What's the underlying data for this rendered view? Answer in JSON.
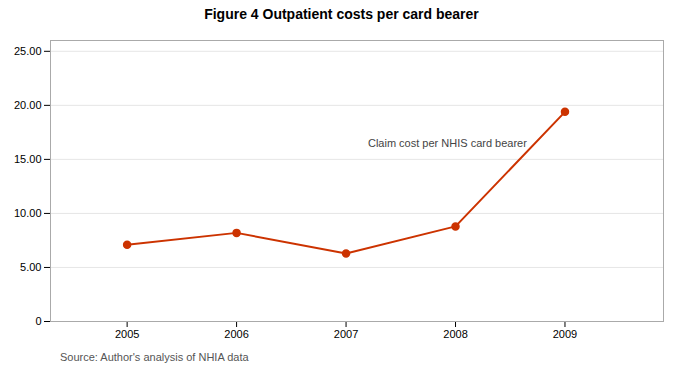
{
  "chart_data": {
    "type": "line",
    "title": "Figure 4 Outpatient costs per card bearer",
    "caption": "Source: Author's analysis of NHIA data",
    "x": [
      2005,
      2006,
      2007,
      2008,
      2009
    ],
    "values": [
      7.1,
      8.2,
      6.3,
      8.8,
      19.4
    ],
    "color": "#cc3300",
    "marker": "circle",
    "annotations": [
      {
        "text": "Claim cost per NHIS card bearer",
        "x": 2007.2,
        "y": 16.5
      }
    ],
    "xlim": [
      2004.3,
      2009.9
    ],
    "xticks": [
      2005,
      2006,
      2007,
      2008,
      2009
    ],
    "ylim": [
      0,
      26
    ],
    "yticks": [
      0,
      {
        "value": 5.0,
        "label": "5.00"
      },
      {
        "value": 10.0,
        "label": "10.00"
      },
      {
        "value": 15.0,
        "label": "15.00"
      },
      {
        "value": 20.0,
        "label": "20.00"
      },
      {
        "value": 25.0,
        "label": "25.00"
      }
    ],
    "grid": "y"
  }
}
